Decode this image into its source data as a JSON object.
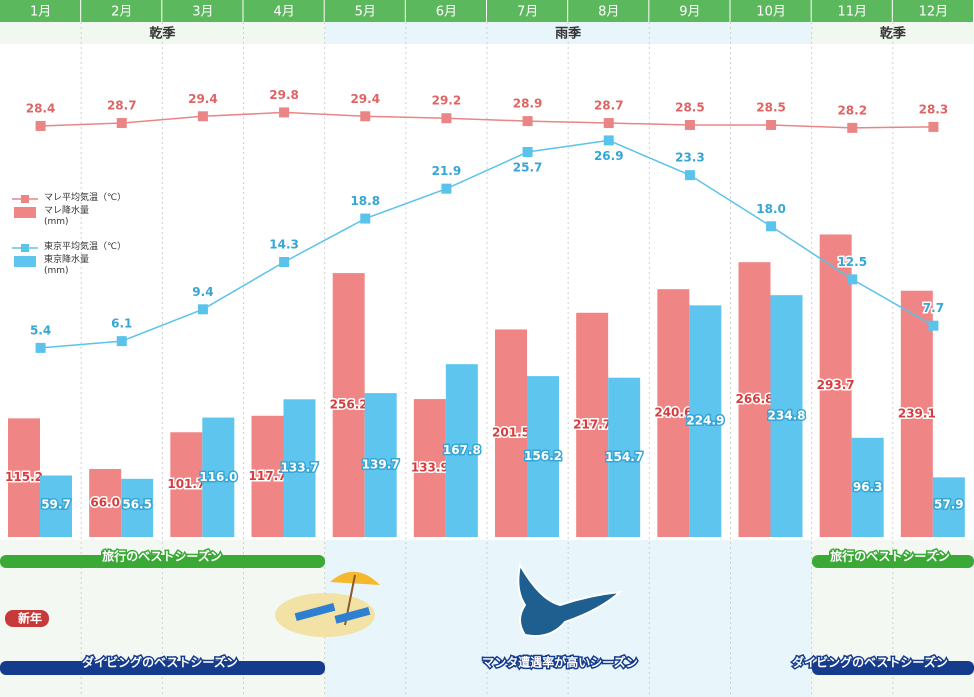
{
  "chart_data": {
    "type": "combo",
    "categories": [
      "1月",
      "2月",
      "3月",
      "4月",
      "5月",
      "6月",
      "7月",
      "8月",
      "9月",
      "10月",
      "11月",
      "12月"
    ],
    "seasons": [
      "乾季",
      "雨季",
      "乾季"
    ],
    "series": [
      {
        "name": "マレ平均気温（℃）",
        "type": "line",
        "color": "#e98584",
        "values": [
          28.4,
          28.7,
          29.4,
          29.8,
          29.4,
          29.2,
          28.9,
          28.7,
          28.5,
          28.5,
          28.2,
          28.3
        ]
      },
      {
        "name": "マレ降水量\n(mm)",
        "type": "bar",
        "color": "#ef8585",
        "values": [
          115.2,
          66.0,
          101.7,
          117.7,
          256.2,
          133.9,
          201.5,
          217.7,
          240.6,
          266.8,
          293.7,
          239.1
        ],
        "value_labels": [
          "115.2",
          "66.0",
          "101.7",
          "117.7",
          "256.2",
          "133.9",
          "201.5",
          "217.7",
          "240.6",
          "266.8",
          "293.7",
          "239.1"
        ]
      },
      {
        "name": "東京平均気温（℃）",
        "type": "line",
        "color": "#5ac3eb",
        "values": [
          5.4,
          6.1,
          9.4,
          14.3,
          18.8,
          21.9,
          25.7,
          26.9,
          23.3,
          18.0,
          12.5,
          7.7
        ],
        "value_labels": [
          "5.4",
          "6.1",
          "9.4",
          "14.3",
          "18.8",
          "21.9",
          "25.7",
          "26.9",
          "23.3",
          "18.0",
          "12.5",
          "7.7"
        ]
      },
      {
        "name": "東京降水量\n(mm)",
        "type": "bar",
        "color": "#5ec6ee",
        "values": [
          59.7,
          56.5,
          116.0,
          133.7,
          139.7,
          167.8,
          156.2,
          154.7,
          224.9,
          234.8,
          96.3,
          57.9
        ],
        "value_labels": [
          "59.7",
          "56.5",
          "116.0",
          "133.7",
          "139.7",
          "167.8",
          "156.2",
          "154.7",
          "224.9",
          "234.8",
          "96.3",
          "57.9"
        ]
      }
    ]
  },
  "notes": {
    "travel_best": "旅行のベストシーズン",
    "new_year": "新年",
    "diving_best": "ダイビングのベストシーズン",
    "manta": "マンタ遭遇率が高いシーズン"
  }
}
